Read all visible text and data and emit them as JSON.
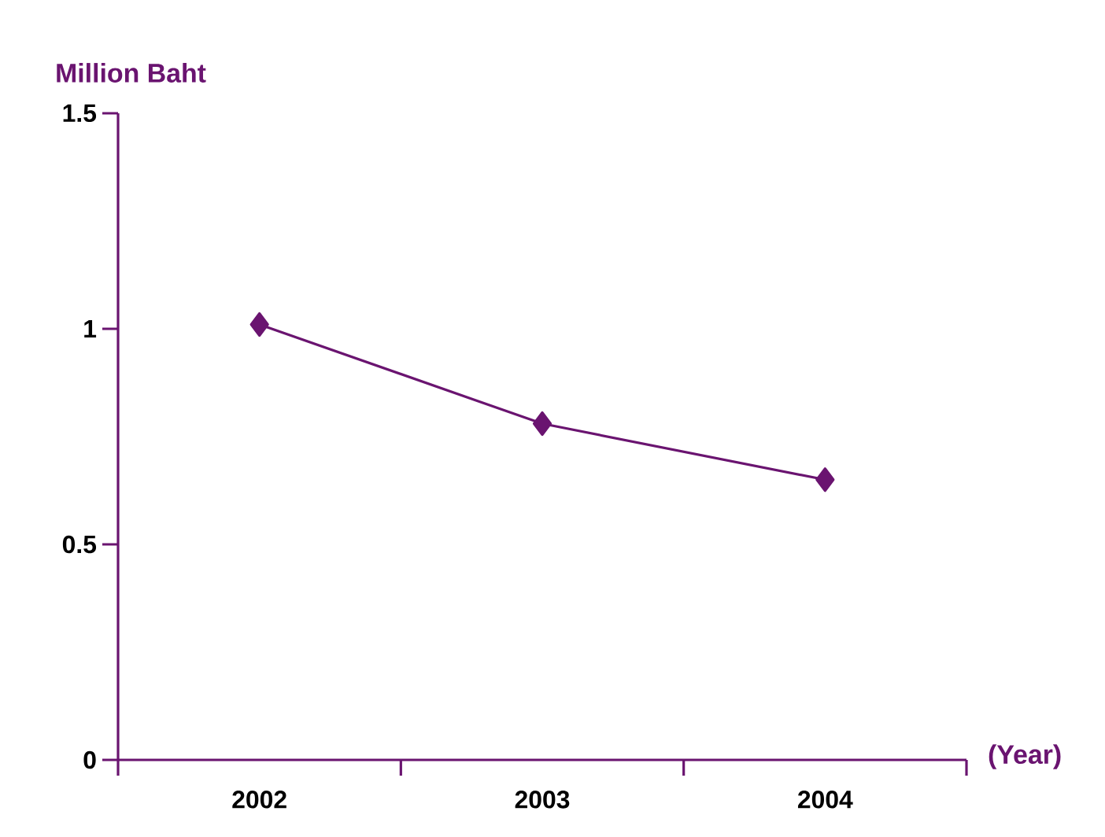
{
  "chart_data": {
    "type": "line",
    "ylabel": "Million Baht",
    "xlabel": "(Year)",
    "categories": [
      "2002",
      "2003",
      "2004"
    ],
    "values": [
      1.01,
      0.78,
      0.65
    ],
    "color": "#6a1470",
    "marker": "diamond",
    "line_style": "solid",
    "ylim": [
      0,
      1.5
    ],
    "yticks": [
      0,
      0.5,
      1,
      1.5
    ]
  }
}
